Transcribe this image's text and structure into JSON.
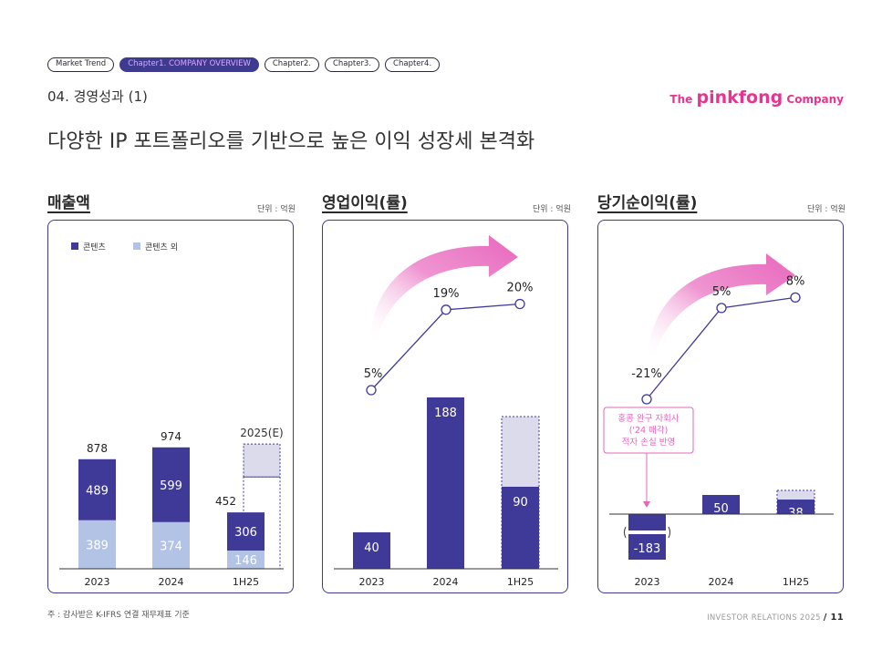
{
  "nav": {
    "items": [
      {
        "label": "Market Trend",
        "active": false
      },
      {
        "label": "Chapter1. COMPANY OVERVIEW",
        "active": true
      },
      {
        "label": "Chapter2.",
        "active": false
      },
      {
        "label": "Chapter3.",
        "active": false
      },
      {
        "label": "Chapter4.",
        "active": false
      }
    ]
  },
  "section_title": "04. 경영성과 (1)",
  "logo": {
    "prefix": "The",
    "brand": "pinkfong",
    "suffix": "Company"
  },
  "headline": "다양한 IP 포트폴리오를 기반으로 높은 이익 성장세 본격화",
  "footnote": "주 : 감사받은 K-IFRS 연결 재무제표 기준",
  "footer": {
    "text": "INVESTOR RELATIONS 2025",
    "page": "/ 11"
  },
  "colors": {
    "dark_bar": "#3f3a98",
    "light_bar": "#b2c3e6",
    "forecast_fill": "#dcdbec",
    "line": "#3f3a98",
    "arrow": "#e867bd",
    "annotation": "#e467b9"
  },
  "chart_data": [
    {
      "type": "bar",
      "stacked": true,
      "title": "매출액",
      "unit_label": "단위 : 억원",
      "categories": [
        "2023",
        "2024",
        "1H25"
      ],
      "legend": [
        "콘텐츠",
        "콘텐츠 외"
      ],
      "series": [
        {
          "name": "콘텐츠",
          "values": [
            489,
            599,
            306
          ]
        },
        {
          "name": "콘텐츠 외",
          "values": [
            389,
            374,
            146
          ]
        }
      ],
      "totals": [
        878,
        974,
        452
      ],
      "forecast": {
        "category": "1H25",
        "label": "2025(E)",
        "total_approx": 1000,
        "content_top_approx": 736
      },
      "ylim": [
        0,
        1080
      ]
    },
    {
      "type": "bar+line",
      "title": "영업이익(률)",
      "unit_label": "단위 : 억원",
      "categories": [
        "2023",
        "2024",
        "1H25"
      ],
      "values": [
        40,
        188,
        90
      ],
      "forecast_top_approx": 167,
      "margin_labels": [
        "5%",
        "19%",
        "20%"
      ],
      "margins": [
        5,
        19,
        20
      ],
      "ylim": [
        0,
        230
      ]
    },
    {
      "type": "bar+line",
      "title": "당기순이익(률)",
      "unit_label": "단위 : 억원",
      "categories": [
        "2023",
        "2024",
        "1H25"
      ],
      "values": [
        -183,
        50,
        38
      ],
      "forecast_top_approx": 62,
      "margin_labels": [
        "-21%",
        "5%",
        "8%"
      ],
      "margins": [
        -21,
        5,
        8
      ],
      "annotation": [
        "홍콩 완구 자회사",
        "('24 매각)",
        "적자 손실 반영"
      ],
      "ylim": [
        -200,
        100
      ]
    }
  ]
}
